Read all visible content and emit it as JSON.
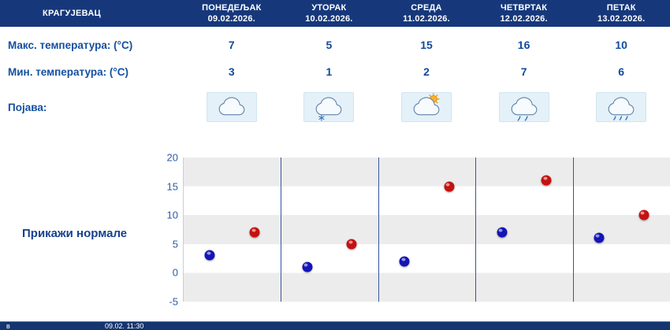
{
  "header": {
    "location": "КРАГУЈЕВАЦ",
    "days": [
      {
        "name": "ПОНЕДЕЉАК",
        "date": "09.02.2026."
      },
      {
        "name": "УТОРАК",
        "date": "10.02.2026."
      },
      {
        "name": "СРЕДА",
        "date": "11.02.2026."
      },
      {
        "name": "ЧЕТВРТАК",
        "date": "12.02.2026."
      },
      {
        "name": "ПЕТАК",
        "date": "13.02.2026."
      }
    ]
  },
  "rows": {
    "max": {
      "label": "Макс. температура: (°C)",
      "values": [
        "7",
        "5",
        "15",
        "16",
        "10"
      ]
    },
    "min": {
      "label": "Мин. температура: (°C)",
      "values": [
        "3",
        "1",
        "2",
        "7",
        "6"
      ]
    },
    "phenomena": {
      "label": "Појава:",
      "icons": [
        "cloudy-icon",
        "snow-icon",
        "partly-cloudy-icon",
        "rain-icon",
        "light-rain-icon"
      ]
    }
  },
  "normals_button": "Прикажи нормале",
  "chart_data": {
    "type": "scatter",
    "categories": [
      "09.02.2026.",
      "10.02.2026.",
      "11.02.2026.",
      "12.02.2026.",
      "13.02.2026."
    ],
    "series": [
      {
        "name": "Минимална температура",
        "color": "#1414b8",
        "values": [
          3,
          1,
          2,
          7,
          6
        ]
      },
      {
        "name": "Максимална температура",
        "color": "#c41210",
        "values": [
          7,
          5,
          15,
          16,
          10
        ]
      }
    ],
    "ylim": [
      -5,
      20
    ],
    "yticks": [
      20,
      15,
      10,
      5,
      0,
      -5
    ],
    "grid": "horizontal-bands",
    "legend": "none"
  },
  "footer": {
    "fragment": "в",
    "timestamp": "09.02. 11:30"
  },
  "colors": {
    "header_bg": "#16387b",
    "text_blue": "#1550a0",
    "min_dot": "#1414b8",
    "max_dot": "#c41210",
    "band_gray": "#ececec"
  }
}
